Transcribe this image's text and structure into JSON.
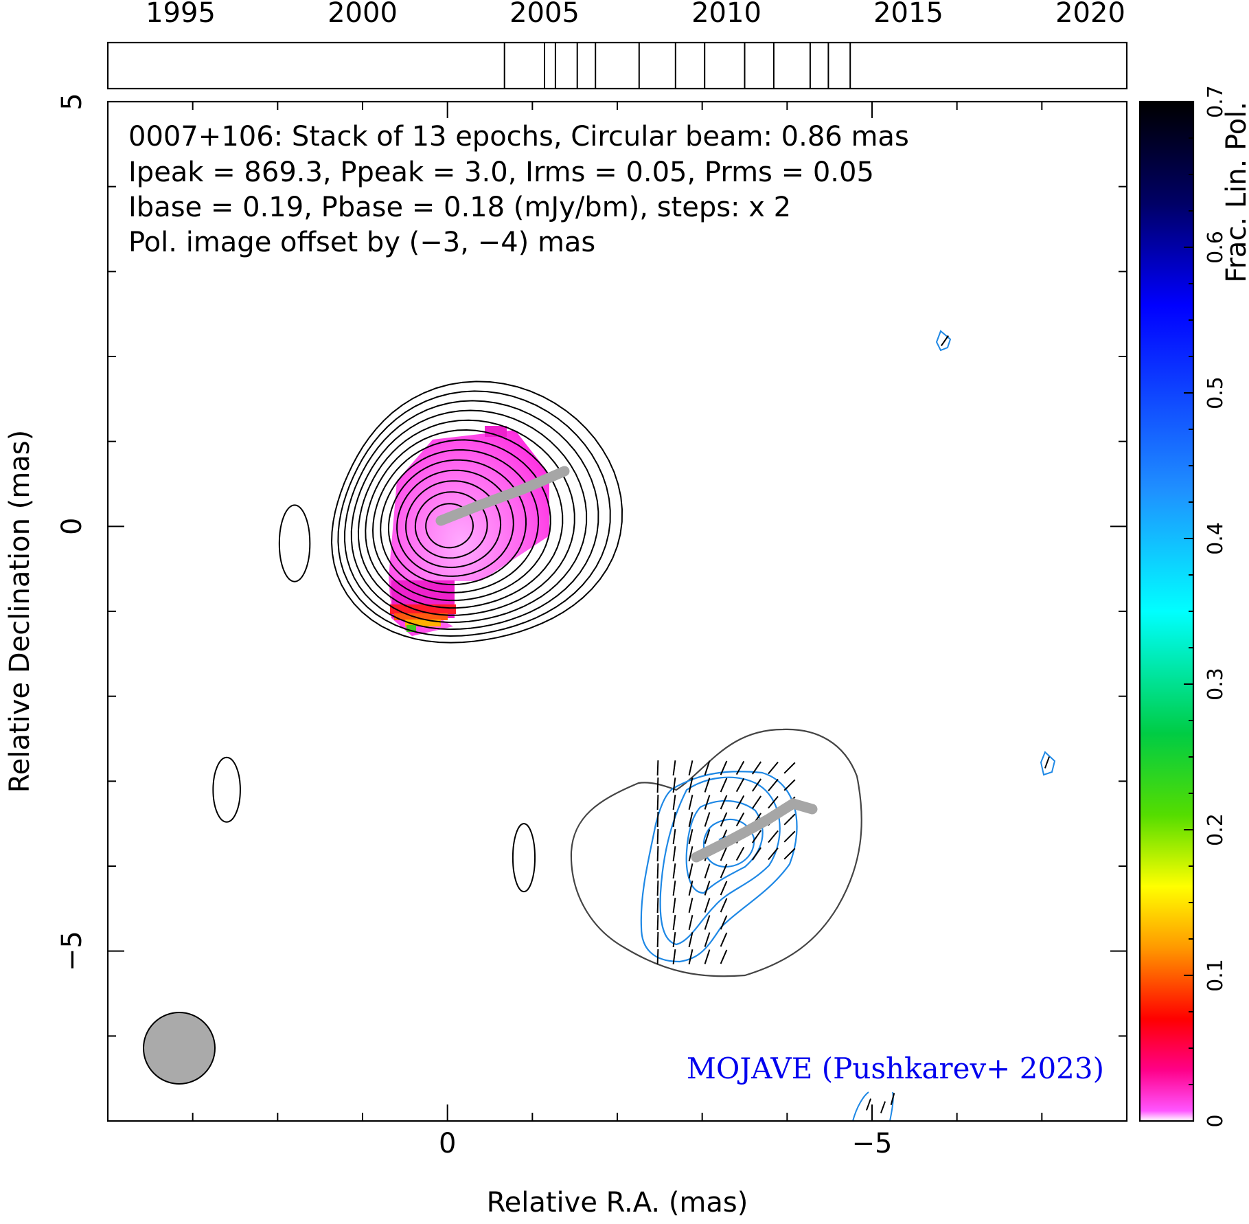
{
  "chart_data": {
    "type": "contour",
    "source": "0007+106",
    "info_lines": [
      "0007+106: Stack of 13 epochs, Circular beam: 0.86 mas",
      "Ipeak = 869.3, Ppeak = 3.0, Irms = 0.05, Prms = 0.05",
      "Ibase = 0.19, Pbase = 0.18 (mJy/bm), steps: x 2"
    ],
    "offset_note": "Pol. image offset by (−3, −4) mas",
    "credit": "MOJAVE (Pushkarev+ 2023)",
    "xlabel": "Relative R.A. (mas)",
    "ylabel": "Relative Declination (mas)",
    "xlim": [
      4,
      -8
    ],
    "ylim": [
      -7,
      5
    ],
    "x_tick_labels": [
      {
        "value": 0,
        "label": "0"
      },
      {
        "value": -5,
        "label": "−5"
      }
    ],
    "y_tick_labels": [
      {
        "value": 5,
        "label": "5"
      },
      {
        "value": 0,
        "label": "0"
      },
      {
        "value": -5,
        "label": "−5"
      }
    ],
    "timeline": {
      "range": [
        1993,
        2021
      ],
      "tick_labels": [
        "1995",
        "2000",
        "2005",
        "2010",
        "2015",
        "2020"
      ],
      "tick_years": [
        1995,
        2000,
        2005,
        2010,
        2015,
        2020
      ],
      "epochs": [
        2003.9,
        2005.0,
        2005.3,
        2005.9,
        2006.4,
        2007.6,
        2008.6,
        2009.4,
        2010.5,
        2011.3,
        2012.3,
        2012.8,
        2013.4
      ]
    },
    "colorbar": {
      "label": "Frac. Lin. Pol.",
      "range": [
        0,
        0.7
      ],
      "tick_values": [
        0,
        0.1,
        0.2,
        0.3,
        0.4,
        0.5,
        0.6,
        0.7
      ],
      "tick_labels": [
        "0",
        "0.1",
        "0.2",
        "0.3",
        "0.4",
        "0.5",
        "0.6",
        "0.7"
      ]
    },
    "beam_diameter_mas": 0.86,
    "total_intensity": {
      "core": [
        0,
        0
      ],
      "contour_count": 13,
      "max_radius_mas": 1.7
    },
    "polarization": {
      "offset_mas": [
        -3,
        -4
      ],
      "contour_color": "#1e88e5",
      "outer_contour_color": "#444444"
    },
    "jet_ridge_color": "#a6a6a6",
    "colors": {
      "info_text": "#000000",
      "offset_text": "#1e88e5",
      "credit": "#0000ee",
      "beam": "#aaaaaa"
    }
  }
}
